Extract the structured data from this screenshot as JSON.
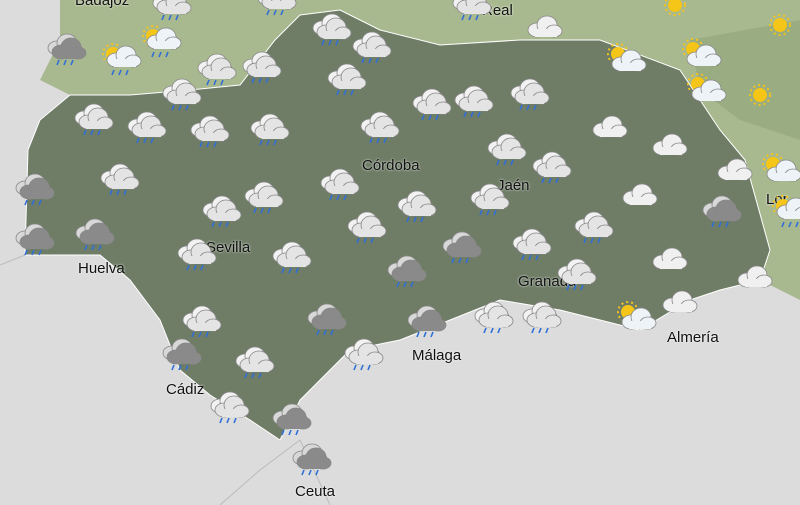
{
  "map": {
    "colors": {
      "sea": "#dcdcdc",
      "region": "#6f7d67",
      "neighbor": "#a9b98f",
      "neighbor_dark": "#8fa37a"
    },
    "cities": [
      "Badajoz",
      "Real",
      "Córdoba",
      "Jaén",
      "Sevilla",
      "Huelva",
      "Granada",
      "Almería",
      "Málaga",
      "Cádiz",
      "Ceuta",
      "Lor"
    ],
    "icons": [
      "rain",
      "rain",
      "rain",
      "cloud",
      "sun",
      "sun",
      "rain",
      "rain-dark",
      "sun-rain",
      "sun-rain",
      "rain",
      "rain",
      "rain",
      "rain",
      "rain",
      "sun-cloud",
      "sun-cloud",
      "sun-cloud",
      "sun",
      "rain",
      "rain",
      "rain",
      "rain",
      "rain",
      "rain",
      "rain",
      "rain",
      "cloud",
      "cloud",
      "rain",
      "rain",
      "cloud",
      "sun-cloud",
      "rain-dark",
      "rain",
      "rain",
      "rain",
      "rain",
      "rain",
      "rain",
      "cloud",
      "rain-dark",
      "sun-rain",
      "rain-dark",
      "rain-dark",
      "rain",
      "rain",
      "rain",
      "rain-dark",
      "rain",
      "rain",
      "cloud",
      "cloud",
      "rain-dark",
      "rain",
      "rain",
      "rain-dark",
      "rain-dark",
      "rain",
      "rain",
      "sun-cloud",
      "cloud",
      "rain-dark",
      "rain",
      "rain",
      "rain",
      "rain-dark",
      "rain-dark"
    ]
  }
}
